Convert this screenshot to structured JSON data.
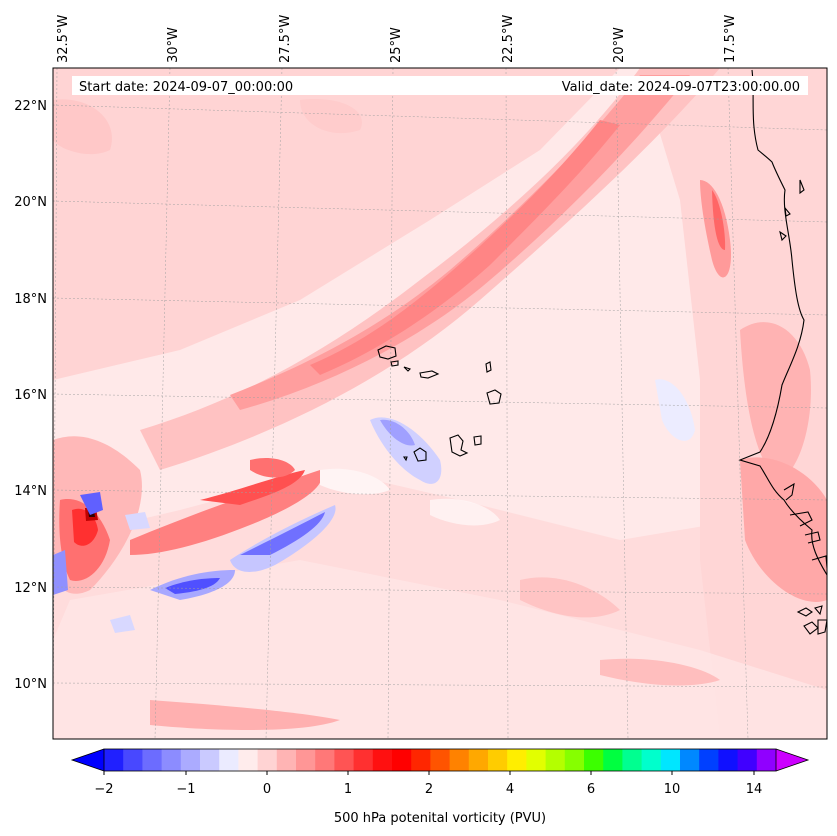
{
  "map": {
    "start_label": "Start date: 2024-09-07_00:00:00",
    "valid_label": "Valid_date: 2024-09-07T23:00:00.00",
    "lon_labels": [
      "32.5°W",
      "30°W",
      "27.5°W",
      "25°W",
      "22.5°W",
      "20°W",
      "17.5°W"
    ],
    "lat_labels": [
      "22°N",
      "20°N",
      "18°N",
      "16°N",
      "14°N",
      "12°N",
      "10°N"
    ],
    "gridlines": true
  },
  "colorbar": {
    "label": "500 hPa potenital vorticity (PVU)",
    "tick_labels": [
      "−2",
      "−1",
      "0",
      "1",
      "2",
      "4",
      "6",
      "10",
      "14"
    ],
    "extend": "both",
    "colors": [
      "#0000ff",
      "#2020ff",
      "#4848ff",
      "#6c6cff",
      "#8c8cff",
      "#ababff",
      "#cacaff",
      "#ebebff",
      "#ffecec",
      "#ffd3d3",
      "#ffb4b4",
      "#ff9696",
      "#ff7878",
      "#ff5454",
      "#ff3030",
      "#ff1010",
      "#ff0000",
      "#ff2600",
      "#ff5400",
      "#ff8200",
      "#ffa800",
      "#ffcc00",
      "#ffee00",
      "#e2ff00",
      "#b4ff00",
      "#86ff00",
      "#3cff00",
      "#00ff40",
      "#00ff90",
      "#00ffcc",
      "#00e6ff",
      "#0088ff",
      "#0040ff",
      "#1010ff",
      "#4000ff",
      "#9000ff",
      "#cc00ff"
    ]
  }
}
